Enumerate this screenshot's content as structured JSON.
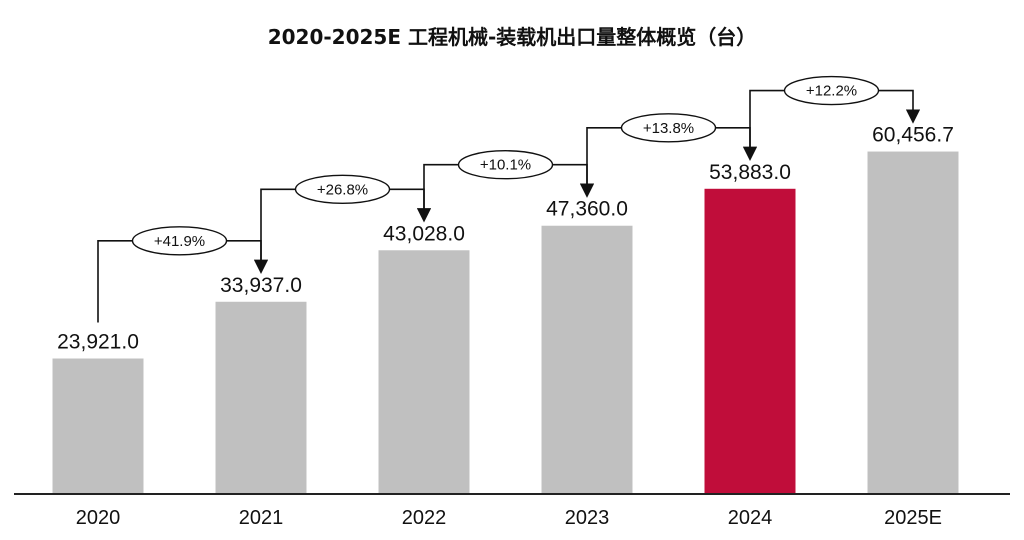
{
  "chart_data": {
    "type": "bar",
    "title": "2020-2025E 工程机械-装载机出口量整体概览（台）",
    "categories": [
      "2020",
      "2021",
      "2022",
      "2023",
      "2024",
      "2025E"
    ],
    "values": [
      23921.0,
      33937.0,
      43028.0,
      47360.0,
      53883.0,
      60456.7
    ],
    "value_labels": [
      "23,921.0",
      "33,937.0",
      "43,028.0",
      "47,360.0",
      "53,883.0",
      "60,456.7"
    ],
    "growth_labels": [
      "+41.9%",
      "+26.8%",
      "+10.1%",
      "+13.8%",
      "+12.2%"
    ],
    "bar_colors": [
      "#c0c0c0",
      "#c0c0c0",
      "#c0c0c0",
      "#c0c0c0",
      "#c00d3a",
      "#c0c0c0"
    ],
    "highlight_category": "2024",
    "ylim": [
      0,
      75000
    ],
    "xlabel": "",
    "ylabel": "",
    "grid": false,
    "legend": "none"
  }
}
